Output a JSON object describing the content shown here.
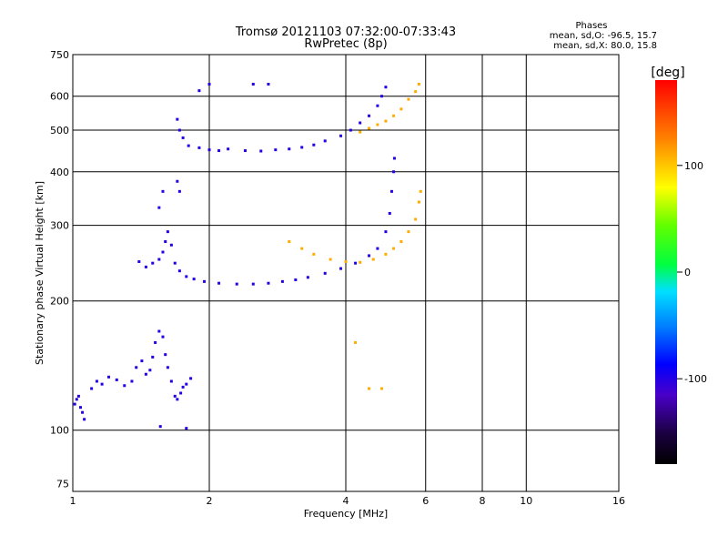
{
  "chart_data": {
    "type": "scatter",
    "title": "Tromsø 20121103 07:32:00-07:33:43",
    "subtitle": "RwPretec (8p)",
    "xlabel": "Frequency [MHz]",
    "ylabel": "Stationary phase Virtual Height [km]",
    "x_scale": "log",
    "y_scale": "log",
    "xlim": [
      1,
      16
    ],
    "ylim": [
      72,
      750
    ],
    "x_ticks": [
      1,
      2,
      4,
      6,
      8,
      10,
      16
    ],
    "y_ticks": [
      75,
      100,
      200,
      300,
      400,
      500,
      600,
      750
    ],
    "grid": true,
    "phases_header": "Phases",
    "phases_stats": [
      "mean, sd,O:  -96.5, 15.7",
      "mean, sd,X:   80.0, 15.8"
    ],
    "colorbar": {
      "label": "[deg]",
      "range": [
        -180,
        180
      ],
      "ticks": [
        -100,
        0,
        100
      ]
    },
    "series": [
      {
        "points": [
          [
            1.01,
            115,
            -100
          ],
          [
            1.02,
            118,
            -100
          ],
          [
            1.03,
            120,
            -100
          ],
          [
            1.04,
            113,
            -100
          ],
          [
            1.05,
            110,
            -100
          ],
          [
            1.06,
            106,
            -100
          ],
          [
            1.1,
            125,
            -100
          ],
          [
            1.13,
            130,
            -100
          ],
          [
            1.16,
            128,
            -100
          ],
          [
            1.2,
            133,
            -100
          ],
          [
            1.25,
            131,
            -100
          ],
          [
            1.3,
            127,
            -100
          ],
          [
            1.35,
            130,
            -100
          ],
          [
            1.38,
            140,
            -100
          ],
          [
            1.42,
            145,
            -100
          ],
          [
            1.45,
            135,
            -100
          ],
          [
            1.48,
            138,
            -100
          ],
          [
            1.5,
            148,
            -100
          ],
          [
            1.52,
            160,
            -100
          ],
          [
            1.55,
            170,
            -100
          ],
          [
            1.58,
            165,
            -100
          ],
          [
            1.6,
            150,
            -100
          ],
          [
            1.62,
            140,
            -100
          ],
          [
            1.65,
            130,
            -100
          ],
          [
            1.68,
            120,
            -100
          ],
          [
            1.7,
            118,
            -100
          ],
          [
            1.73,
            122,
            -100
          ],
          [
            1.75,
            126,
            -100
          ],
          [
            1.78,
            128,
            -100
          ],
          [
            1.82,
            132,
            -100
          ],
          [
            1.56,
            102,
            -100
          ],
          [
            1.78,
            101,
            -100
          ],
          [
            1.4,
            247,
            -100
          ],
          [
            1.45,
            240,
            -100
          ],
          [
            1.5,
            245,
            -100
          ],
          [
            1.55,
            250,
            -100
          ],
          [
            1.58,
            260,
            -100
          ],
          [
            1.6,
            275,
            -100
          ],
          [
            1.62,
            290,
            -100
          ],
          [
            1.65,
            270,
            -100
          ],
          [
            1.68,
            245,
            -100
          ],
          [
            1.72,
            235,
            -100
          ],
          [
            1.78,
            228,
            -100
          ],
          [
            1.85,
            225,
            -100
          ],
          [
            1.95,
            222,
            -100
          ],
          [
            2.1,
            220,
            -100
          ],
          [
            2.3,
            219,
            -100
          ],
          [
            2.5,
            219,
            -100
          ],
          [
            2.7,
            220,
            -100
          ],
          [
            2.9,
            222,
            -100
          ],
          [
            3.1,
            224,
            -100
          ],
          [
            3.3,
            227,
            -100
          ],
          [
            3.6,
            232,
            -100
          ],
          [
            3.9,
            238,
            -100
          ],
          [
            4.2,
            245,
            -100
          ],
          [
            4.5,
            255,
            -100
          ],
          [
            4.7,
            265,
            -100
          ],
          [
            4.9,
            290,
            -100
          ],
          [
            5.0,
            320,
            -100
          ],
          [
            5.05,
            360,
            -100
          ],
          [
            5.1,
            400,
            -100
          ],
          [
            5.12,
            430,
            -100
          ],
          [
            1.55,
            330,
            -100
          ],
          [
            1.58,
            360,
            -100
          ],
          [
            1.7,
            380,
            -100
          ],
          [
            1.72,
            360,
            -100
          ],
          [
            1.7,
            530,
            -100
          ],
          [
            1.72,
            500,
            -100
          ],
          [
            1.75,
            480,
            -100
          ],
          [
            1.8,
            460,
            -100
          ],
          [
            1.9,
            455,
            -100
          ],
          [
            2.0,
            450,
            -100
          ],
          [
            2.1,
            448,
            -100
          ],
          [
            2.2,
            452,
            -100
          ],
          [
            2.4,
            448,
            -100
          ],
          [
            2.6,
            447,
            -100
          ],
          [
            2.8,
            450,
            -100
          ],
          [
            3.0,
            452,
            -100
          ],
          [
            3.2,
            456,
            -100
          ],
          [
            3.4,
            462,
            -100
          ],
          [
            3.6,
            472,
            -100
          ],
          [
            3.9,
            485,
            -100
          ],
          [
            4.1,
            500,
            -100
          ],
          [
            4.3,
            520,
            -100
          ],
          [
            4.5,
            540,
            -100
          ],
          [
            4.7,
            570,
            -100
          ],
          [
            4.8,
            600,
            -100
          ],
          [
            4.9,
            630,
            -100
          ],
          [
            1.9,
            618,
            -100
          ],
          [
            2.0,
            640,
            -100
          ],
          [
            2.5,
            640,
            -100
          ],
          [
            2.7,
            640,
            -100
          ]
        ]
      },
      {
        "points": [
          [
            3.0,
            275,
            110
          ],
          [
            3.2,
            265,
            110
          ],
          [
            3.4,
            257,
            110
          ],
          [
            3.7,
            250,
            110
          ],
          [
            4.0,
            247,
            110
          ],
          [
            4.3,
            246,
            110
          ],
          [
            4.6,
            250,
            110
          ],
          [
            4.9,
            257,
            110
          ],
          [
            5.1,
            265,
            110
          ],
          [
            5.3,
            275,
            110
          ],
          [
            5.5,
            290,
            110
          ],
          [
            5.7,
            310,
            110
          ],
          [
            5.8,
            340,
            110
          ],
          [
            5.85,
            360,
            110
          ],
          [
            4.3,
            495,
            110
          ],
          [
            4.5,
            505,
            110
          ],
          [
            4.7,
            515,
            110
          ],
          [
            4.9,
            525,
            110
          ],
          [
            5.1,
            540,
            110
          ],
          [
            5.3,
            560,
            110
          ],
          [
            5.5,
            590,
            110
          ],
          [
            5.7,
            615,
            110
          ],
          [
            5.8,
            640,
            110
          ],
          [
            4.2,
            160,
            110
          ],
          [
            4.5,
            125,
            110
          ],
          [
            4.8,
            125,
            110
          ]
        ]
      }
    ]
  }
}
